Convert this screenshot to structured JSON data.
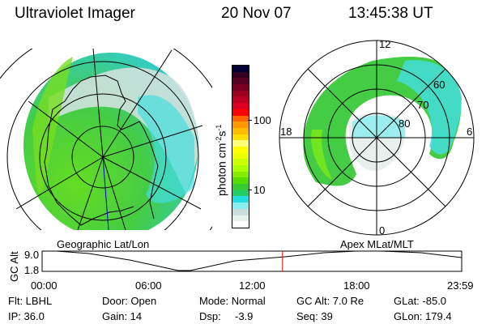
{
  "header": {
    "title": "Ultraviolet Imager",
    "date": "20 Nov 07",
    "time": "13:45:38 UT"
  },
  "colorbar": {
    "label": "photon cm",
    "label_exp1": "-2",
    "label_mid": "s",
    "label_exp2": "-1",
    "ticks": [
      "100",
      "10"
    ],
    "colors": [
      "#000033",
      "#330022",
      "#550022",
      "#770022",
      "#990022",
      "#bb0022",
      "#dd0022",
      "#ff0000",
      "#ff6600",
      "#ff9900",
      "#ffbb00",
      "#ffdd00",
      "#ffff77",
      "#ffff00",
      "#eeff00",
      "#ccff00",
      "#aaff00",
      "#88ee00",
      "#55dd00",
      "#33cc33",
      "#22cc66",
      "#22dddd",
      "#88eeee",
      "#ccdddd",
      "#e6f0ea",
      "#ffffff"
    ]
  },
  "polar_plot": {
    "mlt_labels": [
      "12",
      "18",
      "6",
      "0"
    ],
    "lat_labels": [
      "60",
      "70",
      "80"
    ]
  },
  "timeline": {
    "left_title": "Geographic Lat/Lon",
    "right_title": "Apex MLat/MLT",
    "ylabel": "GC Alt",
    "yticks": [
      "9.0",
      "1.8"
    ],
    "xticks": [
      "00:00",
      "06:00",
      "12:00",
      "18:00",
      "23:59"
    ],
    "current_time_fraction": 0.573,
    "current_color": "#ff0000"
  },
  "info": {
    "filter": "Flt: LBHL",
    "ip": "IP: 36.0",
    "door": "Door: Open",
    "gain": "Gain: 14",
    "mode": "Mode: Normal",
    "dsp_label": "Dsp:",
    "dsp_value": "-3.9",
    "gc_alt": "GC Alt: 7.0 Re",
    "seq": "Seq: 39",
    "glat": "GLat: -85.0",
    "glon": "GLon: 179.4"
  }
}
